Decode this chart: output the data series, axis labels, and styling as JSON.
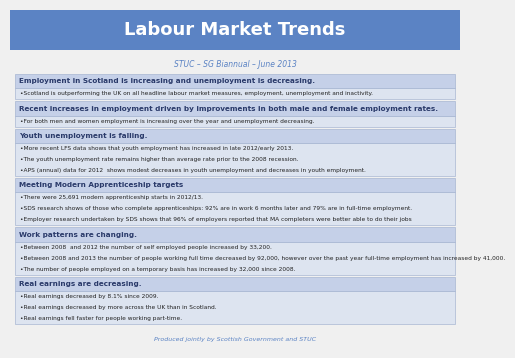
{
  "title": "Labour Market Trends",
  "subtitle": "STUC – SG Biannual – June 2013",
  "footer": "Produced jointly by Scottish Government and STUC",
  "sections": [
    {
      "header": "Employment in Scotland is increasing and unemployment is decreasing.",
      "bullets": [
        "•Scotland is outperforming the UK on all headline labour market measures, employment, unemployment and inactivity."
      ]
    },
    {
      "header": "Recent increases in employment driven by improvements in both male and female employment rates.",
      "bullets": [
        "•For both men and women employment is increasing over the year and unemployment decreasing."
      ]
    },
    {
      "header": "Youth unemployment is falling.",
      "bullets": [
        "•More recent LFS data shows that youth employment has increased in late 2012/early 2013.",
        "•The youth unemployment rate remains higher than average rate prior to the 2008 recession.",
        "•APS (annual) data for 2012  shows modest decreases in youth unemployment and decreases in youth employment."
      ]
    },
    {
      "header": "Meeting Modern Apprenticeship targets",
      "bullets": [
        "•There were 25,691 modern apprenticeship starts in 2012/13.",
        "•SDS research shows of those who complete apprenticeships: 92% are in work 6 months later and 79% are in full-time employment.",
        "•Employer research undertaken by SDS shows that 96% of employers reported that MA completers were better able to do their jobs"
      ]
    },
    {
      "header": "Work patterns are changing.",
      "bullets": [
        "•Between 2008  and 2012 the number of self employed people increased by 33,200.",
        "•Between 2008 and 2013 the number of people working full time decreased by 92,000, however over the past year full-time employment has increased by 41,000.",
        "•The number of people employed on a temporary basis has increased by 32,000 since 2008."
      ]
    },
    {
      "header": "Real earnings are decreasing.",
      "bullets": [
        "•Real earnings decreased by 8.1% since 2009.",
        "•Real earnings decreased by more across the UK than in Scotland.",
        "•Real earnings fell faster for people working part-time."
      ]
    }
  ],
  "title_bg": "#5b83c4",
  "title_color": "#ffffff",
  "header_bg": "#c5d0e8",
  "header_color": "#2a3a6a",
  "bullet_bg": "#dde4f0",
  "bullet_color": "#222222",
  "subtitle_color": "#5b83c4",
  "footer_color": "#5b83c4",
  "outer_bg": "#f0f0f0",
  "title_fontsize": 13,
  "subtitle_fontsize": 5.5,
  "header_fontsize": 5.2,
  "bullet_fontsize": 4.2,
  "footer_fontsize": 4.5
}
